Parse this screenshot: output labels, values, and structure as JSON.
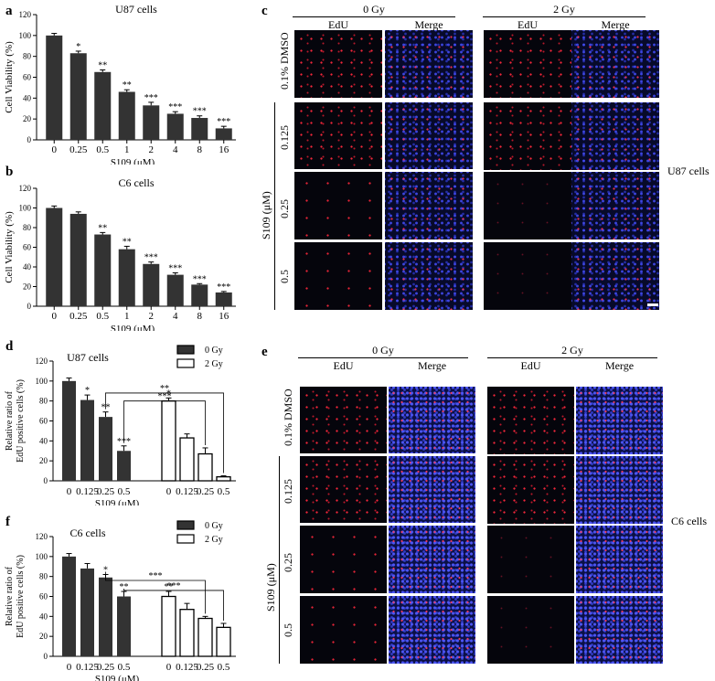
{
  "panels": {
    "a": {
      "letter": "a"
    },
    "b": {
      "letter": "b"
    },
    "c": {
      "letter": "c"
    },
    "d": {
      "letter": "d"
    },
    "e": {
      "letter": "e"
    },
    "f": {
      "letter": "f"
    }
  },
  "chart_data": [
    {
      "id": "a",
      "type": "bar",
      "title": "U87 cells",
      "xlabel": "S109 (μM)",
      "ylabel": "Cell Viability (%)",
      "ylim": [
        0,
        120
      ],
      "yticks": [
        0,
        20,
        40,
        60,
        80,
        100,
        120
      ],
      "categories": [
        "0",
        "0.25",
        "0.5",
        "1",
        "2",
        "4",
        "8",
        "16"
      ],
      "values": [
        100,
        83,
        65,
        46,
        33,
        25,
        21,
        11
      ],
      "errors": [
        2,
        2,
        2,
        2,
        3,
        2,
        2,
        2
      ],
      "significance": [
        "",
        "*",
        "**",
        "**",
        "***",
        "***",
        "***",
        "***"
      ]
    },
    {
      "id": "b",
      "type": "bar",
      "title": "C6 cells",
      "xlabel": "S109 (μM)",
      "ylabel": "Cell Viability (%)",
      "ylim": [
        0,
        120
      ],
      "yticks": [
        0,
        20,
        40,
        60,
        80,
        100,
        120
      ],
      "categories": [
        "0",
        "0.25",
        "0.5",
        "1",
        "2",
        "4",
        "8",
        "16"
      ],
      "values": [
        100,
        94,
        73,
        58,
        43,
        32,
        22,
        14
      ],
      "errors": [
        2,
        2,
        2,
        3,
        2,
        2,
        1,
        1
      ],
      "significance": [
        "",
        "",
        "**",
        "**",
        "***",
        "***",
        "***",
        "***"
      ]
    },
    {
      "id": "d",
      "type": "bar",
      "title": "U87 cells",
      "xlabel": "S109 (μM)",
      "ylabel": [
        "Relative ratio of",
        "EdU positive cells (%)"
      ],
      "ylim": [
        0,
        120
      ],
      "yticks": [
        0,
        20,
        40,
        60,
        80,
        100,
        120
      ],
      "categories": [
        "0",
        "0.125",
        "0.25",
        "0.5"
      ],
      "series": [
        {
          "name": "0 Gy",
          "values": [
            100,
            81,
            64,
            30
          ],
          "errors": [
            3,
            5,
            5,
            5
          ],
          "significance": [
            "",
            "*",
            "**",
            "***"
          ]
        },
        {
          "name": "2 Gy",
          "values": [
            80,
            43,
            27,
            4
          ],
          "errors": [
            3,
            4,
            6,
            1
          ],
          "significance": [
            "*",
            "",
            "",
            ""
          ]
        }
      ],
      "brackets": [
        {
          "from": [
            0,
            2
          ],
          "to": [
            1,
            3
          ],
          "label": "**"
        },
        {
          "from": [
            0,
            3
          ],
          "to": [
            1,
            2
          ],
          "label": "***"
        }
      ],
      "legend": "top-right"
    },
    {
      "id": "f",
      "type": "bar",
      "title": "C6 cells",
      "xlabel": "S109 (μM)",
      "ylabel": [
        "Relative ratio of",
        "EdU positive cells (%)"
      ],
      "ylim": [
        0,
        120
      ],
      "yticks": [
        0,
        20,
        40,
        60,
        80,
        100,
        120
      ],
      "categories": [
        "0",
        "0.125",
        "0.25",
        "0.5"
      ],
      "series": [
        {
          "name": "0 Gy",
          "values": [
            100,
            88,
            79,
            60
          ],
          "errors": [
            3,
            5,
            3,
            5
          ],
          "significance": [
            "",
            "",
            "*",
            "**"
          ]
        },
        {
          "name": "2 Gy",
          "values": [
            60,
            47,
            38,
            29
          ],
          "errors": [
            5,
            6,
            2,
            4
          ],
          "significance": [
            "**",
            "",
            "",
            ""
          ]
        }
      ],
      "brackets": [
        {
          "from": [
            0,
            2
          ],
          "to": [
            1,
            2
          ],
          "label": "***"
        },
        {
          "from": [
            0,
            3
          ],
          "to": [
            1,
            3
          ],
          "label": "***"
        }
      ],
      "legend": "top-right"
    }
  ],
  "micrographs": {
    "c": {
      "dose_labels": [
        "0 Gy",
        "2 Gy"
      ],
      "column_labels": [
        "EdU",
        "Merge",
        "EdU",
        "Merge"
      ],
      "row_labels": [
        "0.1% DMSO",
        "0.125",
        "0.25",
        "0.5"
      ],
      "group_label": "S109 (μM)",
      "cell_label": "U87 cells"
    },
    "e": {
      "dose_labels": [
        "0 Gy",
        "2 Gy"
      ],
      "column_labels": [
        "EdU",
        "Merge",
        "EdU",
        "Merge"
      ],
      "row_labels": [
        "0.1% DMSO",
        "0.125",
        "0.25",
        "0.5"
      ],
      "group_label": "S109 (μM)",
      "cell_label": "C6 cells"
    }
  },
  "colors": {
    "bar_fill": "#333333",
    "bar_open": "#ffffff",
    "axis": "#000000"
  }
}
